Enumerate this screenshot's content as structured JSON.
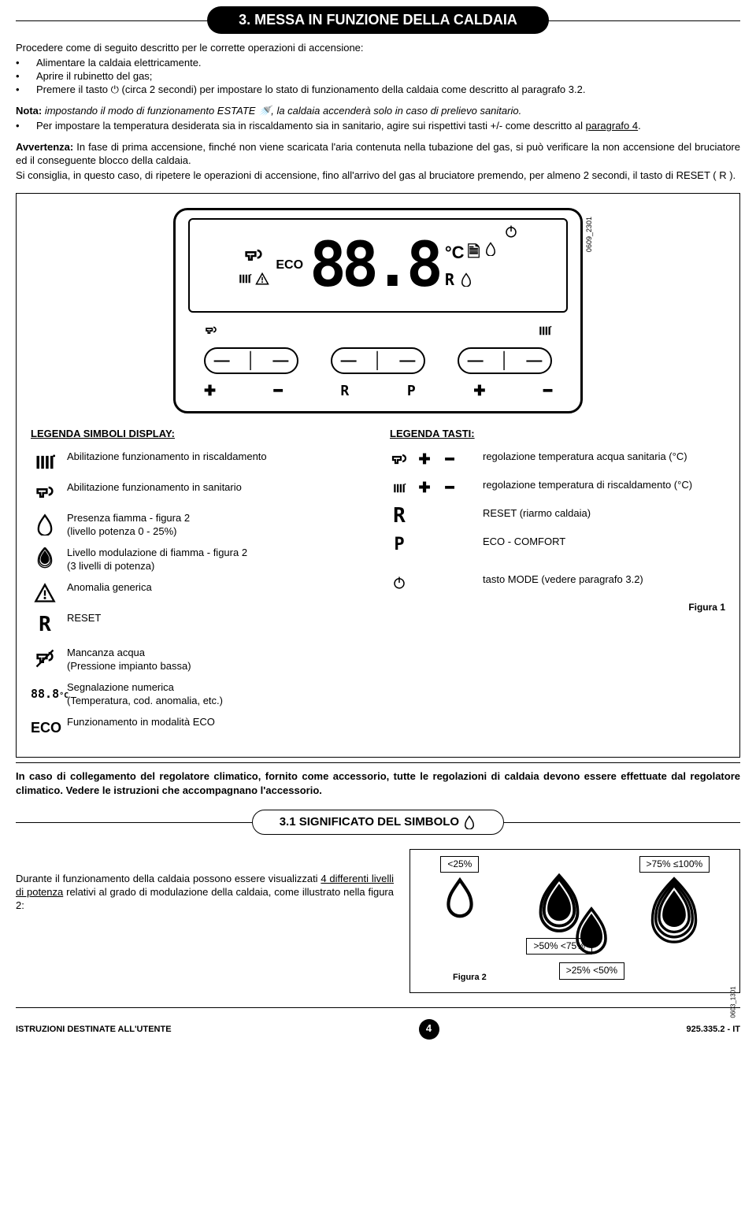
{
  "page": {
    "section_title": "3. MESSA IN FUNZIONE DELLA CALDAIA",
    "intro": "Procedere come di seguito descritto per le corrette operazioni di accensione:",
    "bullets": [
      "Alimentare la caldaia elettricamente.",
      "Aprire il rubinetto del gas;",
      "Premere il tasto ⏻ (circa 2 secondi) per impostare lo stato di funzionamento della caldaia come descritto al paragrafo 3.2."
    ],
    "nota_prefix": "Nota:",
    "nota_body": " impostando il modo di funzionamento ESTATE 🚿, la caldaia accenderà solo in caso di prelievo sanitario.",
    "bullet2": "Per impostare la temperatura desiderata sia in riscaldamento sia in sanitario, agire sui rispettivi tasti +/-  come descritto al ",
    "bullet2_link": "paragrafo 4",
    "avv_prefix": "Avvertenza:",
    "avv_p1": " In fase di prima accensione, finché non viene scaricata l'aria contenuta nella tubazione del gas, si può verificare la non accensione del bruciatore ed il conseguente blocco della caldaia.",
    "avv_p2": "Si consiglia, in questo caso, di ripetere le operazioni di accensione, fino all'arrivo del gas al bruciatore premendo, per almeno 2 secondi, il tasto di RESET ( R ).",
    "diagram_code": "0609_2301",
    "lcd": {
      "eco": "ECO",
      "digits": "88.8",
      "degc": "°C",
      "r": "R"
    },
    "legend_display_title": "LEGENDA SIMBOLI DISPLAY:",
    "legend_keys_title": "LEGENDA TASTI:",
    "legend_display": [
      {
        "icon": "radiator",
        "text": "Abilitazione funzionamento in riscaldamento"
      },
      {
        "icon": "tap",
        "text": "Abilitazione funzionamento in sanitario"
      },
      {
        "icon": "flame1",
        "text": "Presenza fiamma - figura 2\n(livello potenza 0 - 25%)"
      },
      {
        "icon": "flame3",
        "text": "Livello modulazione di fiamma - figura 2\n(3 livelli di potenza)"
      },
      {
        "icon": "warn",
        "text": "Anomalia generica"
      },
      {
        "icon": "R",
        "text": "RESET"
      },
      {
        "icon": "tapcross",
        "text": "Mancanza acqua\n(Pressione impianto bassa)"
      },
      {
        "icon": "88.8°C",
        "text": "Segnalazione numerica\n(Temperatura, cod. anomalia, etc.)"
      },
      {
        "icon": "ECO",
        "text": "Funzionamento in modalità ECO"
      }
    ],
    "legend_keys": [
      {
        "keys": [
          "tap",
          "+",
          "−"
        ],
        "text": "regolazione temperatura acqua sanitaria (°C)"
      },
      {
        "keys": [
          "rad",
          "+",
          "−"
        ],
        "text": "regolazione temperatura di riscaldamento (°C)"
      },
      {
        "keys": [
          "R"
        ],
        "text": "RESET (riarmo caldaia)"
      },
      {
        "keys": [
          "P"
        ],
        "text": "ECO - COMFORT"
      },
      {
        "keys": [
          "⏻"
        ],
        "text": "tasto MODE (vedere paragrafo 3.2)"
      }
    ],
    "figura1": "Figura 1",
    "bold_note": "In caso di collegamento del regolatore climatico, fornito come accessorio, tutte le regolazioni di caldaia devono essere effettuate dal regolatore climatico. Vedere le istruzioni che accompagnano l'accessorio.",
    "sub_title": "3.1 SIGNIFICATO DEL SIMBOLO",
    "fig2_text_a": "Durante il funzionamento della caldaia possono essere visualizzati ",
    "fig2_text_u": "4 differenti livelli di potenza",
    "fig2_text_b": " relativi al grado di modulazione della caldaia, come illustrato nella figura 2:",
    "fig2": {
      "levels": [
        {
          "label": "<25%",
          "flames": 1
        },
        {
          "label": ">75% ≤100%",
          "flames": 4
        },
        {
          "label": ">50% <75%",
          "flames": 3
        },
        {
          "label": ">25% <50%",
          "flames": 2
        }
      ],
      "caption": "Figura 2",
      "code": "0603_1301"
    },
    "footer": {
      "left": "ISTRUZIONI DESTINATE ALL'UTENTE",
      "page": "4",
      "right": "925.335.2 - IT"
    },
    "colors": {
      "ink": "#000000",
      "bg": "#ffffff"
    }
  }
}
